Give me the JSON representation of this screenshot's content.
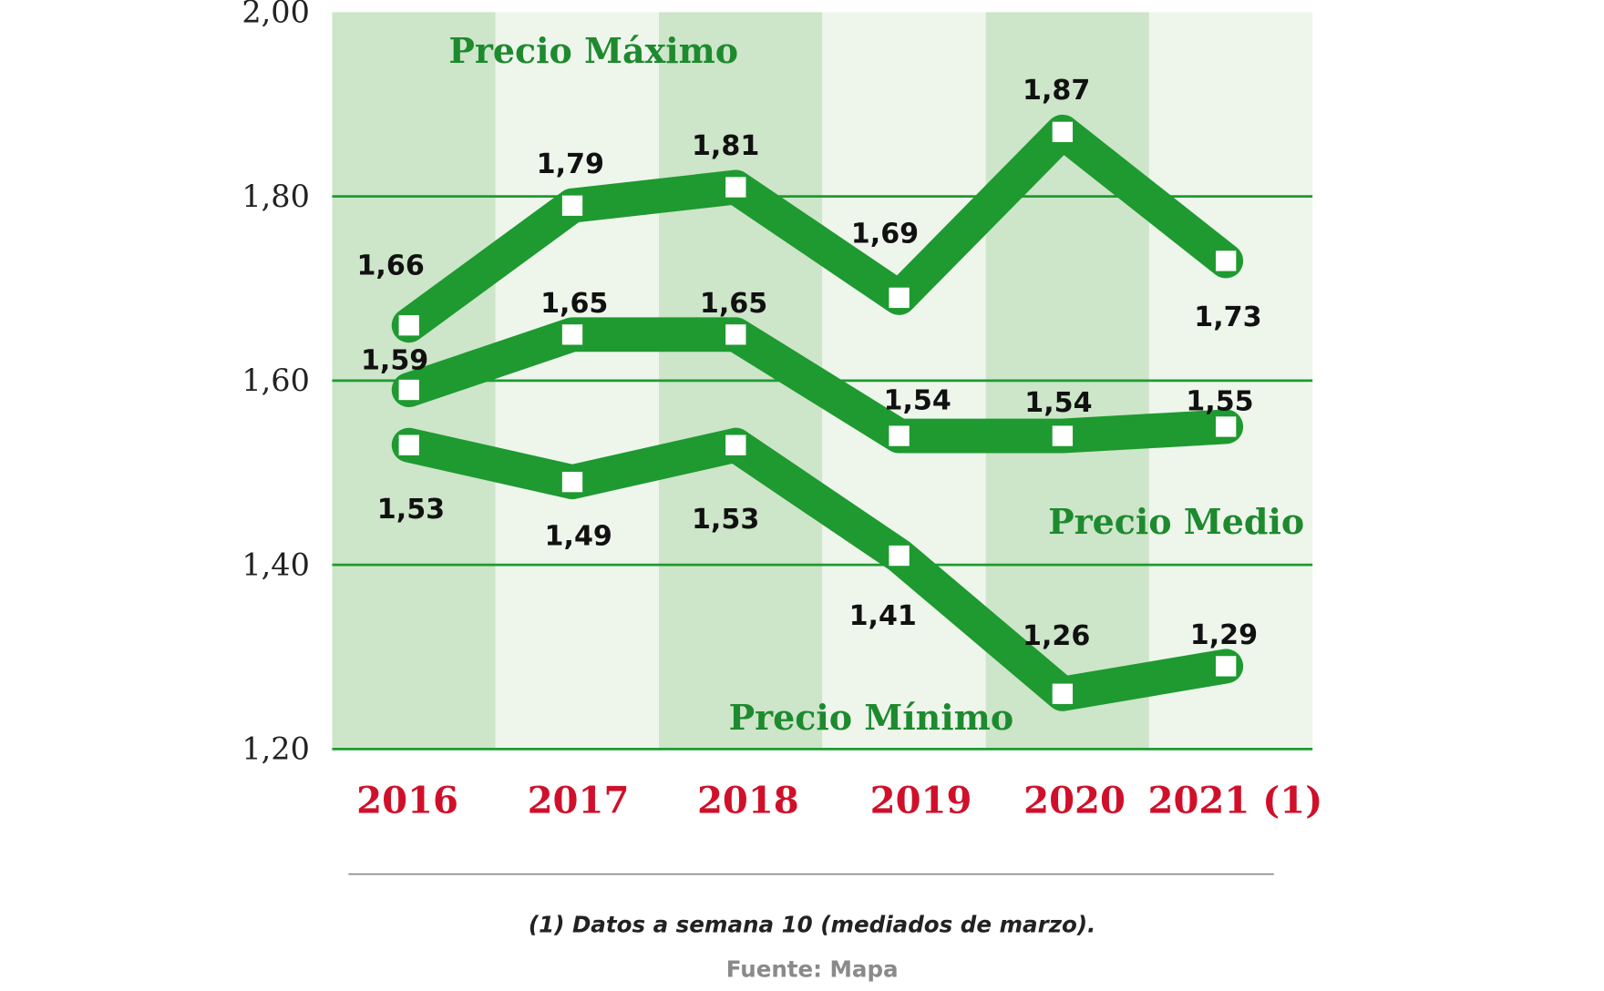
{
  "chart_data": {
    "type": "line",
    "categories": [
      "2016",
      "2017",
      "2018",
      "2019",
      "2020",
      "2021 (1)"
    ],
    "ylim": [
      1.2,
      2.0
    ],
    "yticks": [
      "1,20",
      "1,40",
      "1,60",
      "1,80",
      "2,00"
    ],
    "ytick_values": [
      1.2,
      1.4,
      1.6,
      1.8,
      2.0
    ],
    "grid": true,
    "series": [
      {
        "name": "Precio Máximo",
        "values": [
          1.66,
          1.79,
          1.81,
          1.69,
          1.87,
          1.73
        ],
        "labels": [
          "1,66",
          "1,79",
          "1,81",
          "1,69",
          "1,87",
          "1,73"
        ]
      },
      {
        "name": "Precio Medio",
        "values": [
          1.59,
          1.65,
          1.65,
          1.54,
          1.54,
          1.55
        ],
        "labels": [
          "1,59",
          "1,65",
          "1,65",
          "1,54",
          "1,54",
          "1,55"
        ]
      },
      {
        "name": "Precio Mínimo",
        "values": [
          1.53,
          1.49,
          1.53,
          1.41,
          1.26,
          1.29
        ],
        "labels": [
          "1,53",
          "1,49",
          "1,53",
          "1,41",
          "1,26",
          "1,29"
        ]
      }
    ],
    "colors": {
      "line": "#1e9a30",
      "band_dark": "#cde5c9",
      "band_light": "#eef6ec",
      "gridline": "#1e9a30",
      "category": "#d0102a",
      "series_label": "#1e8a2e"
    }
  },
  "footnote": "(1) Datos a semana 10 (mediados de marzo).",
  "source": "Fuente: Mapa"
}
